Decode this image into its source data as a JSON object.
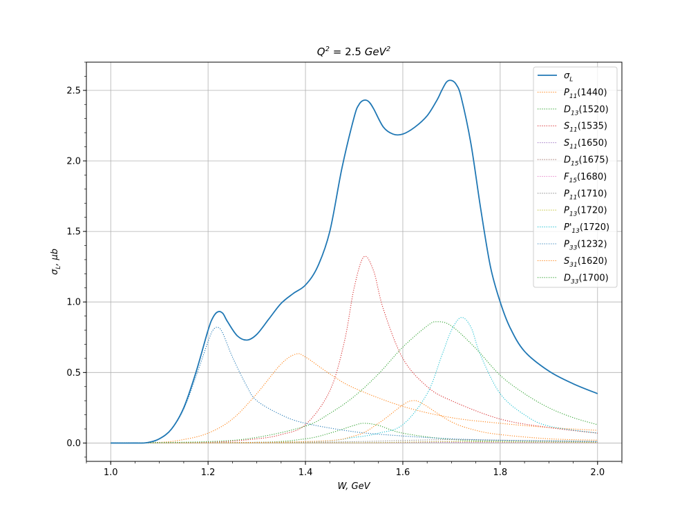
{
  "chart_data": {
    "type": "line",
    "title": {
      "lhs": "Q",
      "sup": "2",
      "eq": " = 2.5 ",
      "unit": "GeV",
      "unit_sup": "2"
    },
    "xlabel": "W, GeV",
    "ylabel": {
      "sym": "σ",
      "sub": "L",
      "rest": ", μb"
    },
    "xlim": [
      0.95,
      2.05
    ],
    "ylim": [
      -0.13,
      2.7
    ],
    "xticks": [
      "1.0",
      "1.2",
      "1.4",
      "1.6",
      "1.8",
      "2.0"
    ],
    "yticks": [
      "0.0",
      "0.5",
      "1.0",
      "1.5",
      "2.0",
      "2.5"
    ],
    "grid": true,
    "legend_position": "top-right",
    "series": [
      {
        "label": {
          "sym": "σ",
          "sub": "L",
          "mass": ""
        },
        "color": "#1f77b4",
        "style": "solid",
        "x": [
          1.0,
          1.05,
          1.075,
          1.1,
          1.125,
          1.15,
          1.175,
          1.2,
          1.21,
          1.22,
          1.23,
          1.24,
          1.26,
          1.28,
          1.3,
          1.325,
          1.35,
          1.375,
          1.4,
          1.425,
          1.45,
          1.475,
          1.5,
          1.51,
          1.52,
          1.53,
          1.54,
          1.56,
          1.58,
          1.6,
          1.625,
          1.65,
          1.67,
          1.68,
          1.69,
          1.7,
          1.71,
          1.72,
          1.74,
          1.76,
          1.78,
          1.8,
          1.82,
          1.85,
          1.9,
          1.95,
          2.0
        ],
        "y": [
          0.0,
          0.0,
          0.003,
          0.03,
          0.1,
          0.25,
          0.5,
          0.8,
          0.89,
          0.93,
          0.92,
          0.86,
          0.76,
          0.73,
          0.77,
          0.88,
          0.99,
          1.06,
          1.12,
          1.25,
          1.5,
          1.95,
          2.31,
          2.4,
          2.43,
          2.42,
          2.37,
          2.24,
          2.19,
          2.19,
          2.24,
          2.32,
          2.43,
          2.5,
          2.56,
          2.57,
          2.54,
          2.45,
          2.12,
          1.66,
          1.25,
          1.0,
          0.82,
          0.65,
          0.51,
          0.42,
          0.35
        ]
      },
      {
        "label": {
          "sym": "P",
          "sub": "11",
          "mass": "(1440)"
        },
        "color": "#ff7f0e",
        "style": "dotted",
        "x": [
          1.0,
          1.1,
          1.15,
          1.2,
          1.25,
          1.3,
          1.35,
          1.38,
          1.4,
          1.45,
          1.5,
          1.6,
          1.7,
          1.8,
          1.9,
          2.0
        ],
        "y": [
          0.0,
          0.005,
          0.025,
          0.07,
          0.17,
          0.35,
          0.56,
          0.63,
          0.61,
          0.49,
          0.39,
          0.26,
          0.18,
          0.14,
          0.11,
          0.09
        ]
      },
      {
        "label": {
          "sym": "D",
          "sub": "13",
          "mass": "(1520)"
        },
        "color": "#2ca02c",
        "style": "dotted",
        "x": [
          1.0,
          1.3,
          1.4,
          1.45,
          1.5,
          1.52,
          1.55,
          1.6,
          1.7,
          1.8,
          2.0
        ],
        "y": [
          0.0,
          0.005,
          0.03,
          0.07,
          0.125,
          0.14,
          0.125,
          0.07,
          0.025,
          0.012,
          0.005
        ]
      },
      {
        "label": {
          "sym": "S",
          "sub": "11",
          "mass": "(1535)"
        },
        "color": "#d62728",
        "style": "dotted",
        "x": [
          1.0,
          1.2,
          1.3,
          1.35,
          1.4,
          1.45,
          1.48,
          1.5,
          1.52,
          1.54,
          1.56,
          1.6,
          1.65,
          1.7,
          1.8,
          1.9,
          2.0
        ],
        "y": [
          0.0,
          0.005,
          0.03,
          0.06,
          0.13,
          0.37,
          0.72,
          1.1,
          1.32,
          1.22,
          0.95,
          0.6,
          0.4,
          0.3,
          0.17,
          0.11,
          0.07
        ]
      },
      {
        "label": {
          "sym": "S",
          "sub": "11",
          "mass": "(1650)"
        },
        "color": "#9467bd",
        "style": "dotted",
        "x": [
          1.0,
          1.4,
          1.55,
          1.65,
          1.75,
          2.0
        ],
        "y": [
          0.0,
          0.0,
          0.002,
          0.005,
          0.004,
          0.002
        ]
      },
      {
        "label": {
          "sym": "D",
          "sub": "15",
          "mass": "(1675)"
        },
        "color": "#8c564b",
        "style": "dotted",
        "x": [
          1.0,
          1.5,
          1.6,
          1.68,
          1.75,
          2.0
        ],
        "y": [
          0.0,
          0.002,
          0.006,
          0.01,
          0.008,
          0.004
        ]
      },
      {
        "label": {
          "sym": "F",
          "sub": "15",
          "mass": "(1680)"
        },
        "color": "#e377c2",
        "style": "dotted",
        "x": [
          1.0,
          1.5,
          1.6,
          1.68,
          1.75,
          2.0
        ],
        "y": [
          0.0,
          0.001,
          0.004,
          0.007,
          0.005,
          0.002
        ]
      },
      {
        "label": {
          "sym": "P",
          "sub": "11",
          "mass": "(1710)"
        },
        "color": "#7f7f7f",
        "style": "dotted",
        "x": [
          1.0,
          1.3,
          1.5,
          1.6,
          1.7,
          1.8,
          2.0
        ],
        "y": [
          0.0,
          0.003,
          0.01,
          0.018,
          0.024,
          0.02,
          0.012
        ]
      },
      {
        "label": {
          "sym": "P",
          "sub": "13",
          "mass": "(1720)"
        },
        "color": "#bcbd22",
        "style": "dotted",
        "x": [
          1.0,
          1.5,
          1.6,
          1.7,
          1.8,
          2.0
        ],
        "y": [
          0.0,
          0.002,
          0.006,
          0.01,
          0.008,
          0.004
        ]
      },
      {
        "label": {
          "sym": "P'",
          "sub": "13",
          "mass": "(1720)"
        },
        "color": "#17becf",
        "style": "dotted",
        "x": [
          1.0,
          1.4,
          1.5,
          1.55,
          1.6,
          1.65,
          1.68,
          1.7,
          1.72,
          1.74,
          1.76,
          1.8,
          1.85,
          1.9,
          2.0
        ],
        "y": [
          0.0,
          0.01,
          0.04,
          0.07,
          0.13,
          0.35,
          0.62,
          0.8,
          0.89,
          0.82,
          0.62,
          0.35,
          0.2,
          0.12,
          0.07
        ]
      },
      {
        "label": {
          "sym": "P",
          "sub": "33",
          "mass": "(1232)"
        },
        "color": "#1f77b4",
        "style": "dotted",
        "x": [
          1.0,
          1.075,
          1.1,
          1.125,
          1.15,
          1.175,
          1.2,
          1.21,
          1.22,
          1.23,
          1.25,
          1.28,
          1.3,
          1.35,
          1.4,
          1.5,
          1.6,
          1.7,
          1.8,
          2.0
        ],
        "y": [
          0.0,
          0.003,
          0.03,
          0.1,
          0.24,
          0.47,
          0.72,
          0.8,
          0.82,
          0.78,
          0.61,
          0.4,
          0.3,
          0.2,
          0.14,
          0.08,
          0.05,
          0.03,
          0.02,
          0.01
        ]
      },
      {
        "label": {
          "sym": "S",
          "sub": "31",
          "mass": "(1620)"
        },
        "color": "#ff7f0e",
        "style": "dotted",
        "x": [
          1.0,
          1.4,
          1.5,
          1.55,
          1.6,
          1.62,
          1.64,
          1.7,
          1.75,
          1.8,
          1.9,
          2.0
        ],
        "y": [
          0.0,
          0.01,
          0.05,
          0.14,
          0.27,
          0.3,
          0.28,
          0.15,
          0.09,
          0.06,
          0.03,
          0.02
        ]
      },
      {
        "label": {
          "sym": "D",
          "sub": "33",
          "mass": "(1700)"
        },
        "color": "#2ca02c",
        "style": "dotted",
        "x": [
          1.0,
          1.2,
          1.3,
          1.4,
          1.45,
          1.5,
          1.55,
          1.6,
          1.65,
          1.67,
          1.7,
          1.75,
          1.8,
          1.85,
          1.9,
          1.95,
          2.0
        ],
        "y": [
          0.0,
          0.01,
          0.04,
          0.12,
          0.21,
          0.33,
          0.49,
          0.68,
          0.83,
          0.86,
          0.83,
          0.67,
          0.48,
          0.35,
          0.25,
          0.18,
          0.13
        ]
      }
    ]
  }
}
